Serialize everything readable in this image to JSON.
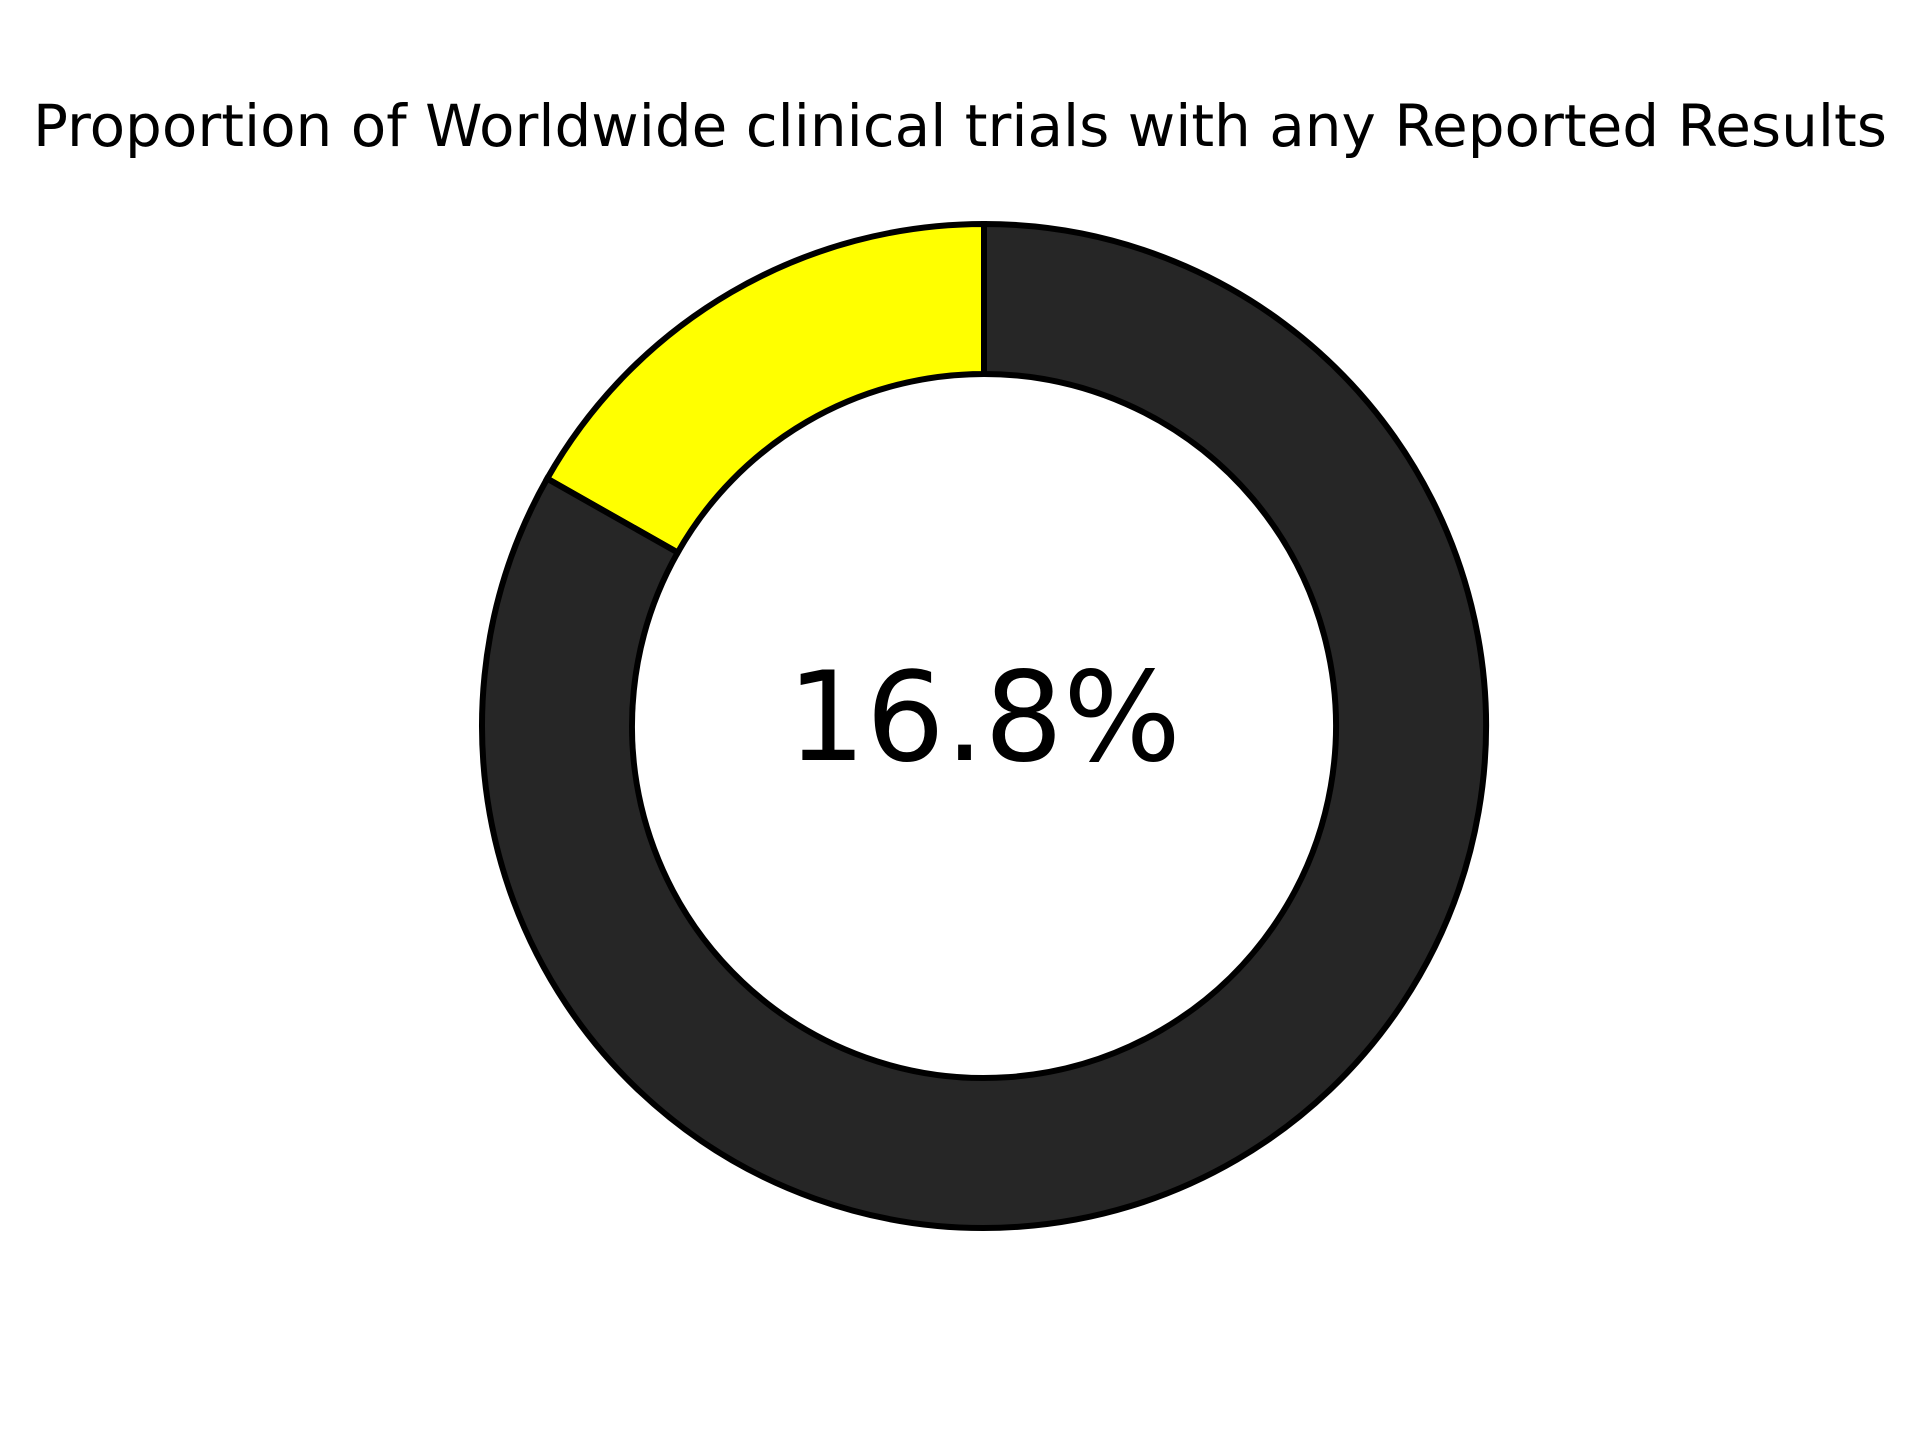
{
  "chart_data": {
    "type": "pie",
    "title": "Proportion of Worldwide clinical trials with any Reported Results",
    "center_label": "16.8%",
    "slices": [
      {
        "value": 16.8,
        "color": "#ffff00"
      },
      {
        "value": 83.2,
        "color": "#262626"
      }
    ],
    "start_angle_deg": 90,
    "direction": "counterclockwise",
    "edge_color": "#000000"
  }
}
